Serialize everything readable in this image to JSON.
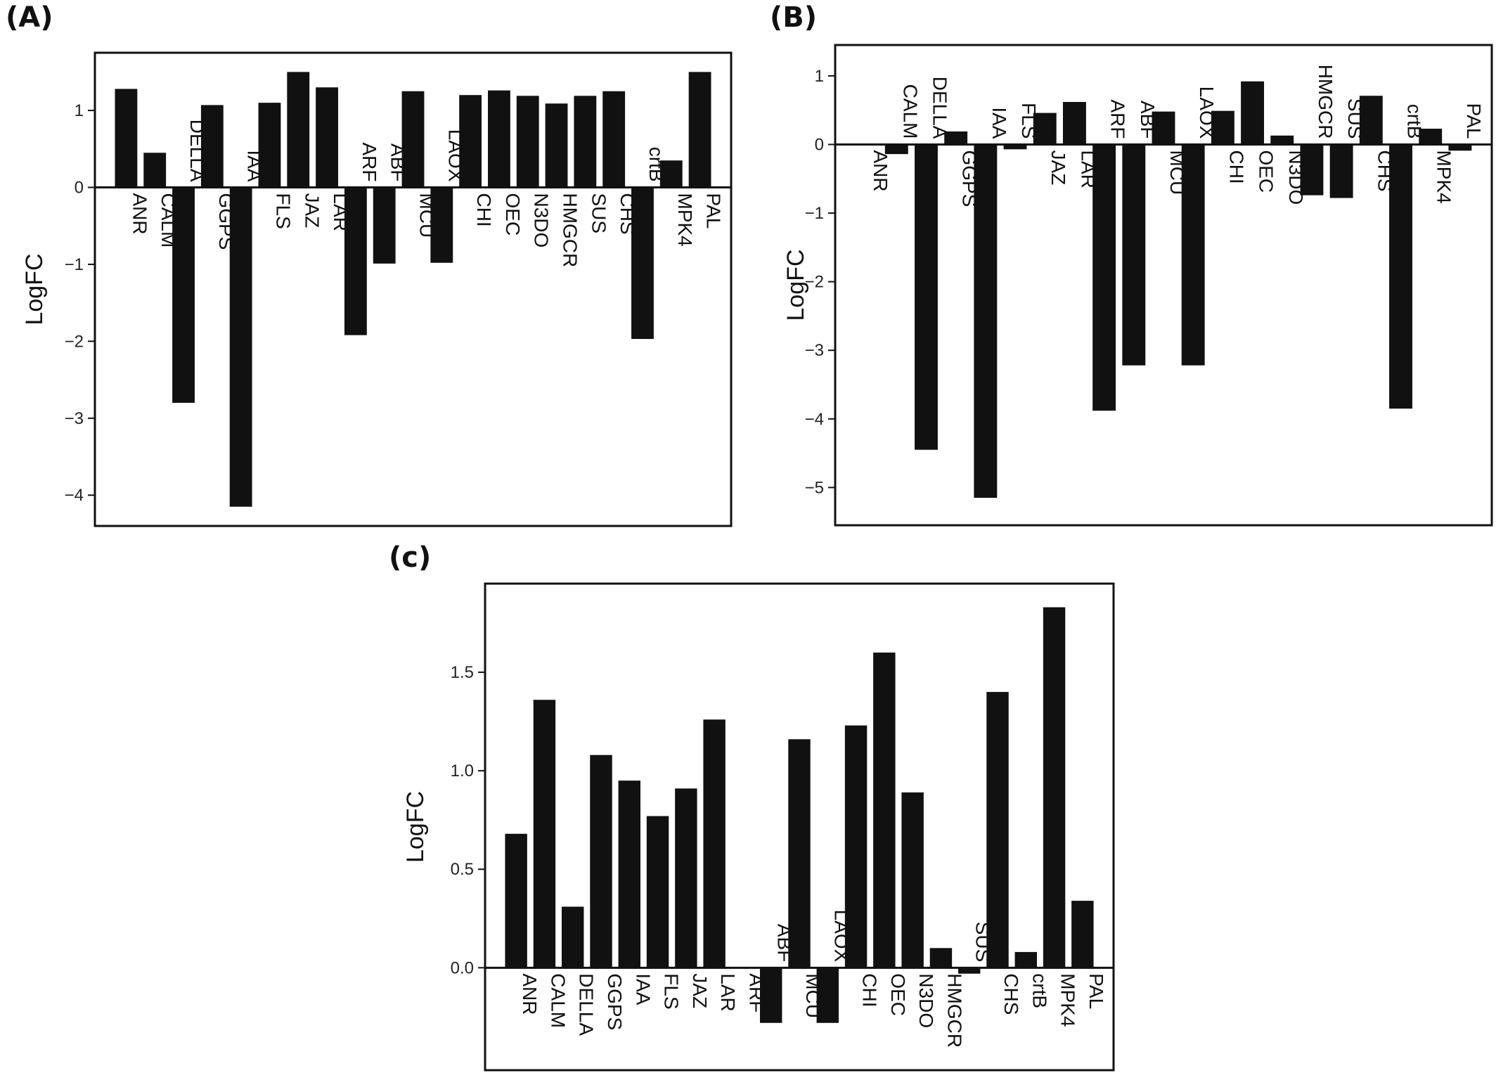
{
  "panels": {
    "a": {
      "label": "(A)"
    },
    "b": {
      "label": "(B)"
    },
    "c": {
      "label": "(c)"
    }
  },
  "chart_data": [
    {
      "id": "A",
      "type": "bar",
      "ylabel": "LogFC",
      "ylim": [
        -4.4,
        1.75
      ],
      "yticks": [
        1,
        0,
        -1,
        -2,
        -3,
        -4
      ],
      "ytick_labels": [
        "1",
        "0",
        "−1",
        "−2",
        "−3",
        "−4"
      ],
      "categories": [
        "ANR",
        "CALM",
        "DELLA",
        "GGPS",
        "IAA",
        "FLS",
        "JAZ",
        "LAR",
        "ARF",
        "ABF",
        "MCU",
        "LAOX",
        "CHI",
        "OEC",
        "N3DO",
        "HMGCR",
        "SUS",
        "CHS",
        "crtB",
        "MPK4",
        "PAL"
      ],
      "values": [
        1.28,
        0.45,
        -2.8,
        1.07,
        -4.15,
        1.1,
        1.5,
        1.3,
        -1.92,
        -0.99,
        1.25,
        -0.98,
        1.2,
        1.26,
        1.19,
        1.09,
        1.19,
        1.25,
        -1.97,
        0.35,
        1.5
      ],
      "grid": false
    },
    {
      "id": "B",
      "type": "bar",
      "ylabel": "LogFC",
      "ylim": [
        -5.55,
        1.45
      ],
      "yticks": [
        1,
        0,
        -1,
        -2,
        -3,
        -4,
        -5
      ],
      "ytick_labels": [
        "1",
        "0",
        "−1",
        "−2",
        "−3",
        "−4",
        "−5"
      ],
      "categories": [
        "ANR",
        "CALM",
        "DELLA",
        "GGPS",
        "IAA",
        "FLS",
        "JAZ",
        "LAR",
        "ARF",
        "ABF",
        "MCU",
        "LAOX",
        "CHI",
        "OEC",
        "N3DO",
        "HMGCR",
        "SUS",
        "CHS",
        "crtB",
        "MPK4",
        "PAL"
      ],
      "values": [
        0.0,
        -0.14,
        -4.45,
        0.19,
        -5.15,
        -0.07,
        0.46,
        0.62,
        -3.88,
        -3.22,
        0.48,
        -3.22,
        0.49,
        0.92,
        0.13,
        -0.74,
        -0.78,
        0.71,
        -3.85,
        0.23,
        -0.09
      ],
      "grid": false
    },
    {
      "id": "C",
      "type": "bar",
      "ylabel": "LogFC",
      "ylim": [
        -0.52,
        1.95
      ],
      "yticks": [
        1.5,
        1.0,
        0.5,
        0.0
      ],
      "ytick_labels": [
        "1.5",
        "1.0",
        "0.5",
        "0.0"
      ],
      "categories": [
        "ANR",
        "CALM",
        "DELLA",
        "GGPS",
        "IAA",
        "FLS",
        "JAZ",
        "LAR",
        "ARF",
        "ABF",
        "MCU",
        "LAOX",
        "CHI",
        "OEC",
        "N3DO",
        "HMGCR",
        "SUS",
        "CHS",
        "crtB",
        "MPK4",
        "PAL"
      ],
      "values": [
        0.68,
        1.36,
        0.31,
        1.08,
        0.95,
        0.77,
        0.91,
        1.26,
        0.0,
        -0.28,
        1.16,
        -0.28,
        1.23,
        1.6,
        0.89,
        0.1,
        -0.03,
        1.4,
        0.08,
        1.83,
        0.34
      ],
      "grid": false
    }
  ]
}
